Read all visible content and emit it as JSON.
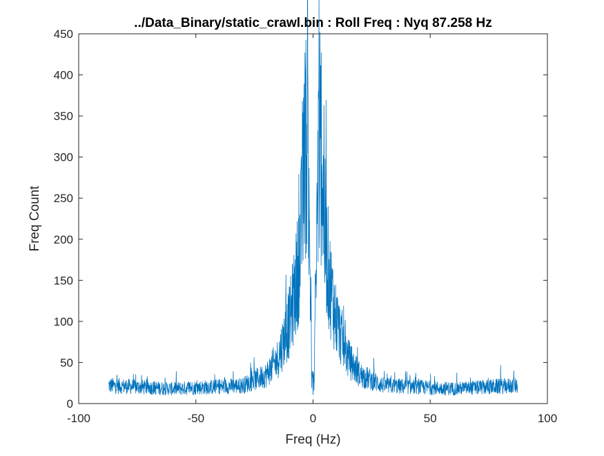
{
  "chart_data": {
    "type": "line",
    "title": "../Data_Binary/static_crawl.bin : Roll Freq : Nyq 87.258 Hz",
    "xlabel": "Freq (Hz)",
    "ylabel": "Freq Count",
    "xlim": [
      -100,
      100
    ],
    "ylim": [
      0,
      450
    ],
    "xticks": [
      -100,
      -50,
      0,
      50,
      100
    ],
    "xtick_labels": [
      "-100",
      "-50",
      "0",
      "50",
      "100"
    ],
    "yticks": [
      0,
      50,
      100,
      150,
      200,
      250,
      300,
      350,
      400,
      450
    ],
    "ytick_labels": [
      "0",
      "50",
      "100",
      "150",
      "200",
      "250",
      "300",
      "350",
      "400",
      "450"
    ],
    "grid": false,
    "series_color": "#0072bd",
    "x_range": [
      -87.258,
      87.258
    ],
    "x_step": 0.1,
    "envelope": {
      "description_points": [
        [
          -87.258,
          22
        ],
        [
          -60,
          18
        ],
        [
          -30,
          22
        ],
        [
          -20,
          35
        ],
        [
          -15,
          55
        ],
        [
          -10,
          100
        ],
        [
          -7,
          150
        ],
        [
          -5,
          210
        ],
        [
          -4,
          270
        ],
        [
          -3,
          320
        ],
        [
          -2,
          260
        ],
        [
          -1,
          120
        ],
        [
          0,
          15
        ],
        [
          1,
          120
        ],
        [
          2,
          260
        ],
        [
          3,
          320
        ],
        [
          4,
          270
        ],
        [
          5,
          210
        ],
        [
          7,
          150
        ],
        [
          10,
          100
        ],
        [
          15,
          55
        ],
        [
          20,
          35
        ],
        [
          30,
          22
        ],
        [
          60,
          18
        ],
        [
          87.258,
          22
        ]
      ],
      "noise_amplitude_fraction": 0.45
    },
    "peaks": [
      {
        "x": -3.5,
        "y": 427
      },
      {
        "x": -2.2,
        "y": 380
      },
      {
        "x": 2.2,
        "y": 380
      },
      {
        "x": 3.5,
        "y": 427
      },
      {
        "x": -4.6,
        "y": 368
      },
      {
        "x": 4.6,
        "y": 363
      }
    ]
  }
}
